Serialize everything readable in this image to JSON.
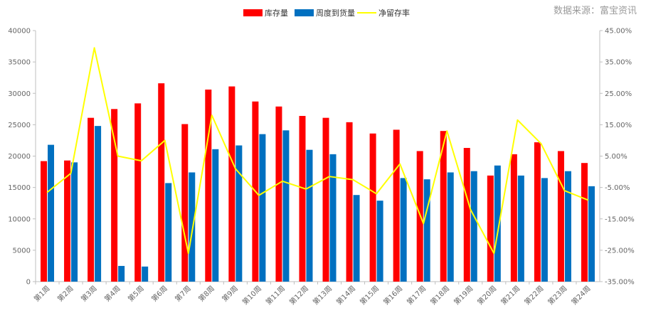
{
  "source_text": "数据来源：富宝资讯",
  "chart_data": {
    "type": "bar",
    "categories": [
      "第1周",
      "第2周",
      "第3周",
      "第4周",
      "第5周",
      "第6周",
      "第7周",
      "第8周",
      "第9周",
      "第10周",
      "第11周",
      "第12周",
      "第13周",
      "第14周",
      "第15周",
      "第16周",
      "第17周",
      "第18周",
      "第19周",
      "第20周",
      "第21周",
      "第22周",
      "第23周",
      "第24周"
    ],
    "series": [
      {
        "name": "库存量",
        "type": "bar",
        "axis": "left",
        "color": "#ff0000",
        "values": [
          19200,
          19300,
          26100,
          27500,
          28400,
          31600,
          25100,
          30600,
          31100,
          28700,
          27900,
          26400,
          26100,
          25400,
          23600,
          24200,
          20800,
          24000,
          21300,
          16900,
          20300,
          22200,
          20800,
          18900
        ]
      },
      {
        "name": "周度到货量",
        "type": "bar",
        "axis": "left",
        "color": "#0070c0",
        "values": [
          21800,
          19000,
          24800,
          2500,
          2400,
          15700,
          17400,
          21100,
          21700,
          23500,
          24100,
          21000,
          20300,
          13800,
          12900,
          16500,
          16300,
          17400,
          17600,
          18500,
          16900,
          16500,
          17600,
          15200
        ]
      },
      {
        "name": "净留存率",
        "type": "line",
        "axis": "right",
        "color": "#ffff00",
        "values": [
          -6.5,
          -0.5,
          39.5,
          5.0,
          3.5,
          10.0,
          -26.0,
          18.0,
          1.0,
          -7.5,
          -3.0,
          -5.5,
          -1.5,
          -2.5,
          -7.0,
          2.5,
          -16.5,
          13.0,
          -12.0,
          -26.0,
          16.5,
          9.0,
          -6.0,
          -9.0
        ]
      }
    ],
    "y_left": {
      "min": 0,
      "max": 40000,
      "step": 5000,
      "ticks": [
        "0",
        "5000",
        "10000",
        "15000",
        "20000",
        "25000",
        "30000",
        "35000",
        "40000"
      ]
    },
    "y_right": {
      "min": -35,
      "max": 45,
      "step": 10,
      "ticks": [
        "-35.00%",
        "-25.00%",
        "-15.00%",
        "-5.00%",
        "5.00%",
        "15.00%",
        "25.00%",
        "35.00%",
        "45.00%"
      ]
    },
    "legend_position": "top-center",
    "grid": false
  }
}
